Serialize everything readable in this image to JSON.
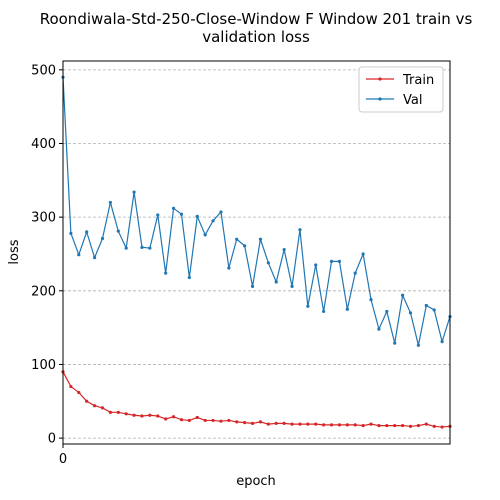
{
  "chart_data": {
    "type": "line",
    "title_line1": "Roondiwala-Std-250-Close-Window F Window 201 train vs",
    "title_line2": "validation loss",
    "xlabel": "epoch",
    "ylabel": "loss",
    "xlim": [
      0,
      49
    ],
    "ylim": [
      -8,
      512
    ],
    "yticks": [
      0,
      100,
      200,
      300,
      400,
      500
    ],
    "xticks": [
      0
    ],
    "grid": "y-dashed",
    "legend_position": "top-right",
    "series": [
      {
        "name": "Train",
        "color": "#d62728",
        "values": [
          90,
          70,
          62,
          50,
          44,
          41,
          35,
          35,
          33,
          31,
          30,
          31,
          30,
          26,
          29,
          25,
          24,
          28,
          24,
          24,
          23,
          24,
          22,
          21,
          20,
          22,
          19,
          20,
          20,
          19,
          19,
          19,
          19,
          18,
          18,
          18,
          18,
          18,
          17,
          19,
          17,
          17,
          17,
          17,
          16,
          17,
          19,
          16,
          15,
          16
        ]
      },
      {
        "name": "Val",
        "color": "#1f77b4",
        "values": [
          490,
          278,
          249,
          280,
          245,
          271,
          320,
          281,
          258,
          334,
          259,
          258,
          303,
          224,
          312,
          304,
          218,
          301,
          276,
          295,
          307,
          231,
          270,
          261,
          206,
          270,
          238,
          212,
          256,
          206,
          283,
          179,
          235,
          172,
          240,
          240,
          175,
          224,
          250,
          188,
          148,
          172,
          129,
          194,
          170,
          126,
          180,
          174,
          131,
          165
        ]
      }
    ]
  }
}
